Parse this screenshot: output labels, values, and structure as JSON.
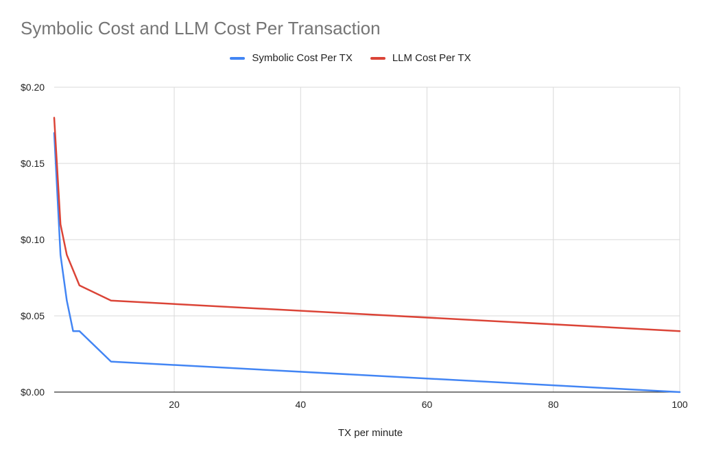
{
  "chart_data": {
    "type": "line",
    "title": "Symbolic Cost and LLM Cost Per Transaction",
    "xlabel": "TX per minute",
    "ylabel": "",
    "xlim": [
      1,
      100
    ],
    "ylim": [
      0,
      0.2
    ],
    "x_ticks": [
      20,
      40,
      60,
      80,
      100
    ],
    "y_ticks": [
      0,
      0.05,
      0.1,
      0.15,
      0.2
    ],
    "y_tick_labels": [
      "$0.00",
      "$0.05",
      "$0.10",
      "$0.15",
      "$0.20"
    ],
    "grid": true,
    "legend_position": "top",
    "series": [
      {
        "name": "Symbolic Cost Per TX",
        "color": "#4285F4",
        "x": [
          1,
          2,
          3,
          4,
          5,
          10,
          100
        ],
        "values": [
          0.17,
          0.09,
          0.06,
          0.04,
          0.04,
          0.02,
          0.0
        ]
      },
      {
        "name": "LLM Cost Per TX",
        "color": "#DB4437",
        "x": [
          1,
          2,
          3,
          4,
          5,
          10,
          100
        ],
        "values": [
          0.18,
          0.11,
          0.09,
          0.08,
          0.07,
          0.06,
          0.04
        ]
      }
    ]
  }
}
